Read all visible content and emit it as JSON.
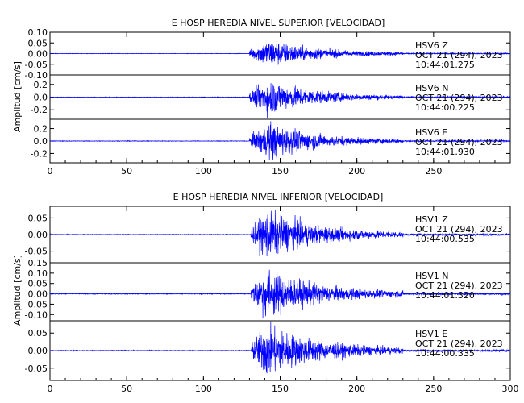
{
  "chart_data": [
    {
      "type": "line",
      "title": "E HOSP HEREDIA NIVEL SUPERIOR [VELOCIDAD]",
      "ylabel": "Amplitud [cm/s]",
      "xlabel": "",
      "xlim": [
        0,
        300
      ],
      "x_ticks": [
        "0",
        "50",
        "100",
        "150",
        "200",
        "250"
      ],
      "line_color": "#0000ff",
      "grid": false,
      "channels": [
        {
          "station": "HSV6",
          "component": "Z",
          "date": "OCT 21 (294), 2023",
          "time": "10:44:01.275",
          "ylim": [
            -0.1,
            0.1
          ],
          "y_ticks": [
            "0.10",
            "0.05",
            "0.00",
            "-0.05",
            "-0.10"
          ],
          "onset": 130,
          "peak_time": 143,
          "peak_amplitude": 0.065,
          "decay": 30
        },
        {
          "station": "HSV6",
          "component": "N",
          "date": "OCT 21 (294), 2023",
          "time": "10:44:00.225",
          "ylim": [
            -0.35,
            0.35
          ],
          "y_ticks": [
            "0.2",
            "0.0",
            "-0.2"
          ],
          "onset": 130,
          "peak_time": 143,
          "peak_amplitude": 0.28,
          "decay": 28
        },
        {
          "station": "HSV6",
          "component": "E",
          "date": "OCT 21 (294), 2023",
          "time": "10:44:01.930",
          "ylim": [
            -0.35,
            0.35
          ],
          "y_ticks": [
            "0.2",
            "0.0",
            "-0.2"
          ],
          "onset": 130,
          "peak_time": 144,
          "peak_amplitude": 0.3,
          "decay": 28
        }
      ]
    },
    {
      "type": "line",
      "title": "E HOSP HEREDIA NIVEL INFERIOR [VELOCIDAD]",
      "ylabel": "Amplitud [cm/s]",
      "xlabel": "",
      "xlim": [
        0,
        300
      ],
      "x_ticks": [
        "0",
        "50",
        "100",
        "150",
        "200",
        "250",
        "300"
      ],
      "line_color": "#0000ff",
      "grid": false,
      "channels": [
        {
          "station": "HSV1",
          "component": "Z",
          "date": "OCT 21 (294), 2023",
          "time": "10:44:00.535",
          "ylim": [
            -0.085,
            0.085
          ],
          "y_ticks": [
            "0.05",
            "0.00",
            "-0.05"
          ],
          "onset": 131,
          "peak_time": 142,
          "peak_amplitude": 0.07,
          "decay": 32
        },
        {
          "station": "HSV1",
          "component": "N",
          "date": "OCT 21 (294), 2023",
          "time": "10:44:01.320",
          "ylim": [
            -0.13,
            0.15
          ],
          "y_ticks": [
            "0.15",
            "0.10",
            "0.05",
            "0.00",
            "-0.05",
            "-0.10"
          ],
          "onset": 131,
          "peak_time": 141,
          "peak_amplitude": 0.12,
          "decay": 32
        },
        {
          "station": "HSV1",
          "component": "E",
          "date": "OCT 21 (294), 2023",
          "time": "10:44:00.335",
          "ylim": [
            -0.085,
            0.085
          ],
          "y_ticks": [
            "0.05",
            "0.00",
            "-0.05"
          ],
          "onset": 131,
          "peak_time": 141,
          "peak_amplitude": 0.075,
          "decay": 32
        }
      ]
    }
  ]
}
